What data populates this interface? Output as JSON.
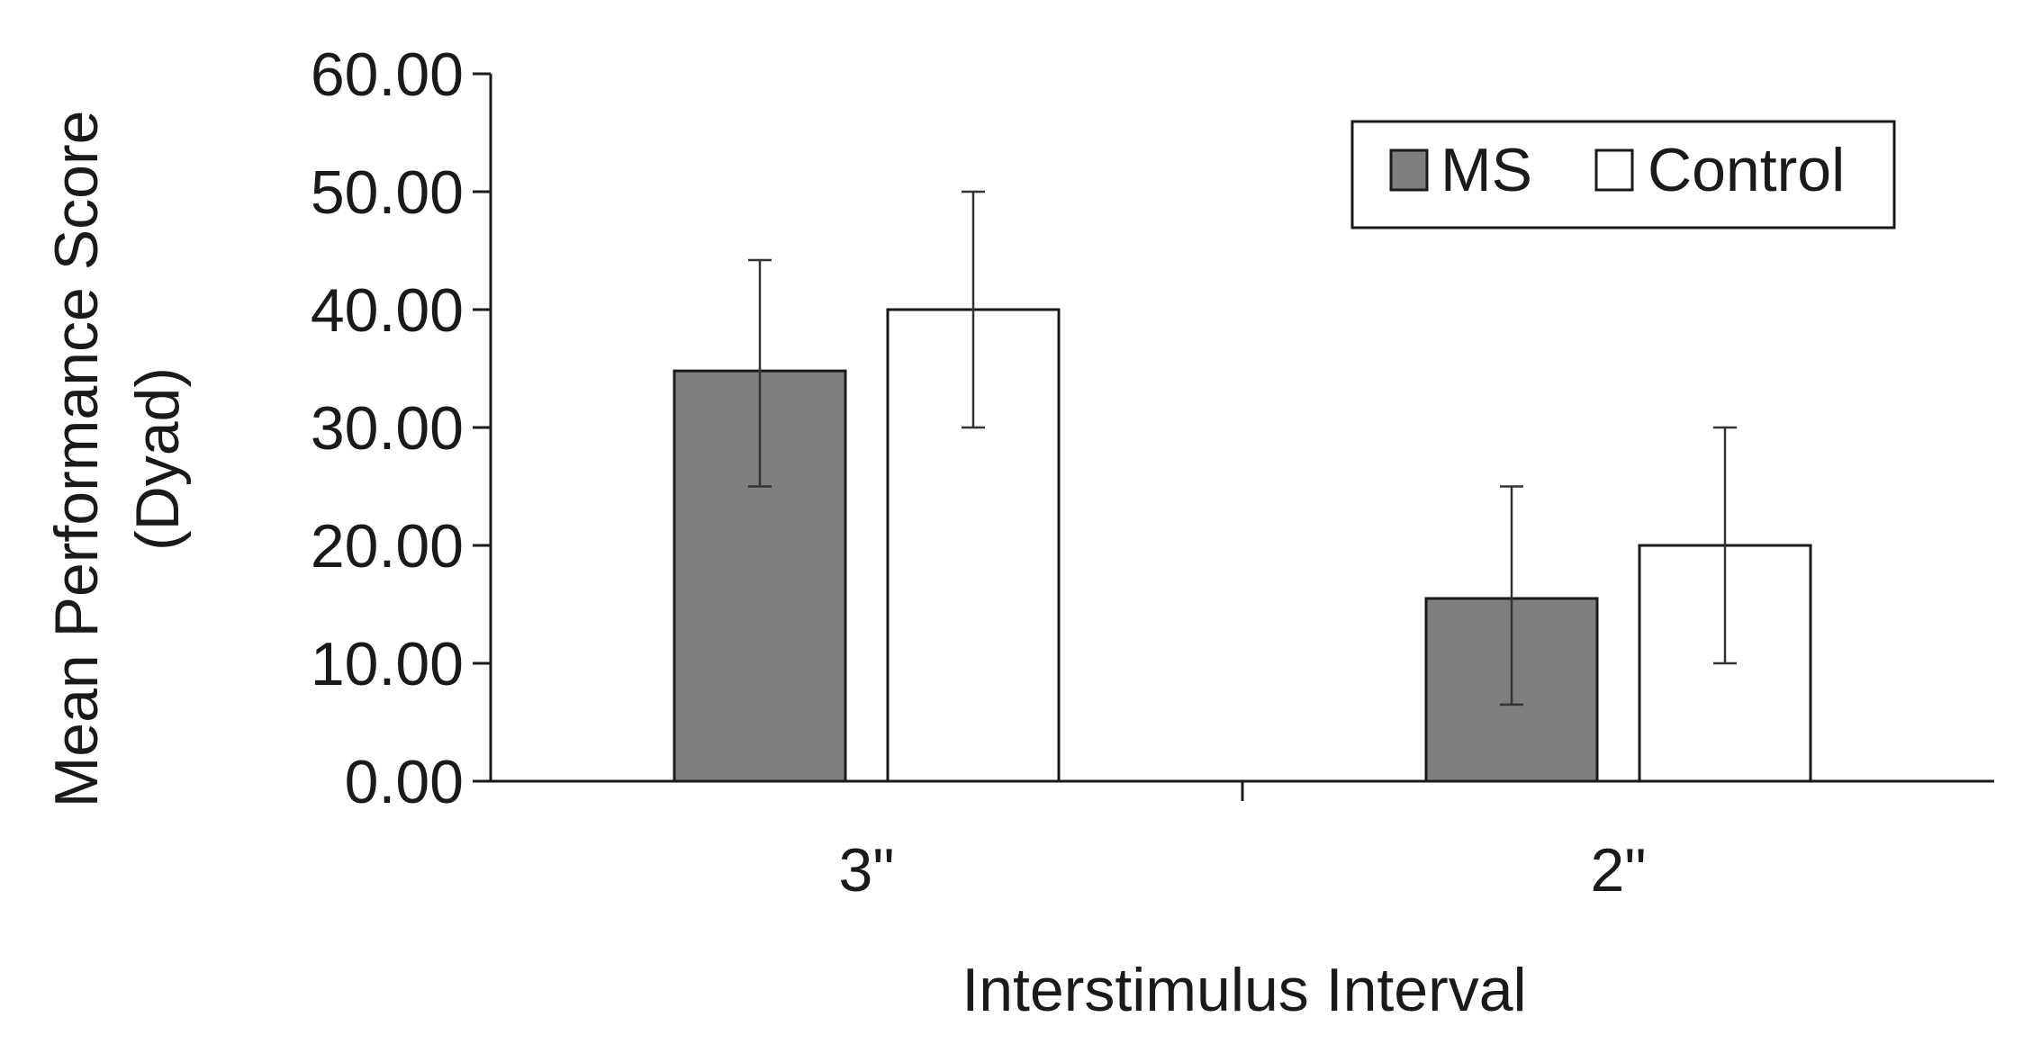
{
  "chart_data": {
    "type": "bar",
    "categories": [
      "3\"",
      "2\""
    ],
    "series": [
      {
        "name": "MS",
        "color": "#7f7f7f",
        "values": [
          34.8,
          15.5
        ],
        "error_low": [
          25.0,
          6.5
        ],
        "error_high": [
          44.2,
          25.0
        ]
      },
      {
        "name": "Control",
        "color": "#ffffff",
        "values": [
          40.0,
          20.0
        ],
        "error_low": [
          30.0,
          10.0
        ],
        "error_high": [
          50.0,
          30.0
        ]
      }
    ],
    "title": "",
    "xlabel": "Interstimulus Interval",
    "ylabel_line1": "Mean Performance Score",
    "ylabel_line2": "(Dyad)",
    "ylim": [
      0,
      60
    ],
    "yticks": [
      "0.00",
      "10.00",
      "20.00",
      "30.00",
      "40.00",
      "50.00",
      "60.00"
    ],
    "grid": false,
    "legend_position": "top-right",
    "stroke_color": "#1a1a1a"
  }
}
